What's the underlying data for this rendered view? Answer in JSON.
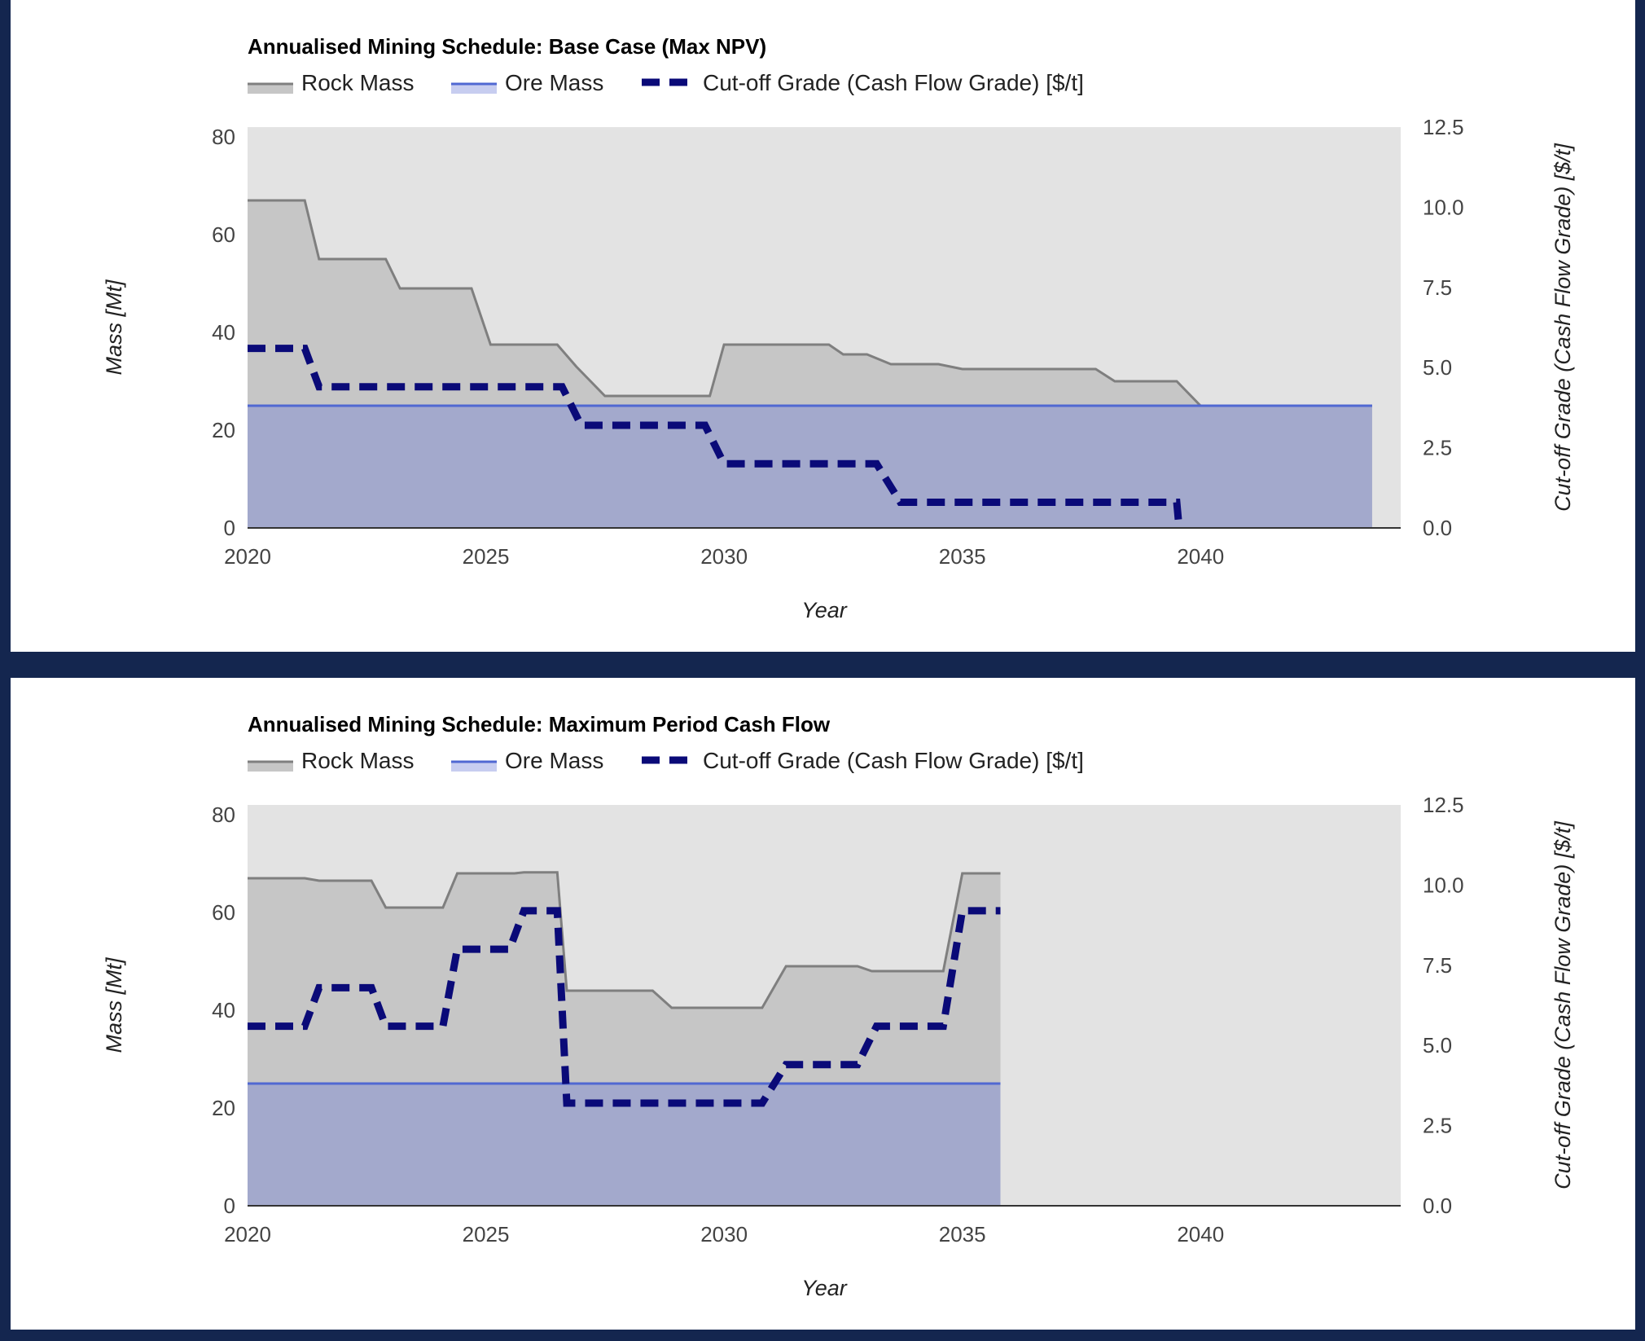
{
  "colors": {
    "background": "#14264f",
    "plot_bg": "#e3e3e3",
    "rock_line": "#7f7f7f",
    "rock_fill": "#c6c6c6",
    "ore_line": "#5068d2",
    "ore_fill": "#a3a9cc",
    "cutoff": "#0a0a78"
  },
  "chart_data": [
    {
      "type": "area",
      "title": "Annualised Mining Schedule: Base Case (Max NPV)",
      "xlabel": "Year",
      "ylabel": "Mass [Mt]",
      "y2label": "Cut-off Grade (Cash Flow Grade) [$/t]",
      "xlim": [
        2020,
        2044.2
      ],
      "ylim": [
        0,
        82
      ],
      "y2lim": [
        0,
        12.5
      ],
      "xticks": [
        "2020",
        "2025",
        "2030",
        "2035",
        "2040"
      ],
      "yticks": [
        "0",
        "20",
        "40",
        "60",
        "80"
      ],
      "y2ticks": [
        "0.0",
        "2.5",
        "5.0",
        "7.5",
        "10.0",
        "12.5"
      ],
      "legend_position": "top-left",
      "grid": false,
      "series": [
        {
          "name": "Rock Mass",
          "axis": "left",
          "style": "area",
          "x": [
            2020,
            2021.2,
            2021.5,
            2022.9,
            2023.2,
            2024.7,
            2025.1,
            2026.5,
            2026.9,
            2027.5,
            2029.7,
            2030.0,
            2032.2,
            2032.5,
            2033.0,
            2033.5,
            2034.5,
            2035.0,
            2037.8,
            2038.2,
            2039.5,
            2040.0,
            2043.6
          ],
          "values": [
            67,
            67,
            55,
            55,
            49,
            49,
            37.5,
            37.5,
            33,
            27,
            27,
            37.5,
            37.5,
            35.5,
            35.5,
            33.5,
            33.5,
            32.5,
            32.5,
            30,
            30,
            25,
            25
          ]
        },
        {
          "name": "Ore Mass",
          "axis": "left",
          "style": "area",
          "x": [
            2020,
            2043.6
          ],
          "values": [
            25,
            25
          ]
        },
        {
          "name": "Cut-off Grade (Cash Flow Grade) [$/t]",
          "axis": "right",
          "style": "dashed",
          "x": [
            2020,
            2021.2,
            2021.5,
            2026.6,
            2027.0,
            2029.6,
            2030.0,
            2033.2,
            2033.7,
            2039.5,
            2039.55
          ],
          "values": [
            5.6,
            5.6,
            4.4,
            4.4,
            3.2,
            3.2,
            2.0,
            2.0,
            0.8,
            0.8,
            0.0
          ]
        }
      ]
    },
    {
      "type": "area",
      "title": "Annualised Mining Schedule: Maximum Period Cash Flow",
      "xlabel": "Year",
      "ylabel": "Mass [Mt]",
      "y2label": "Cut-off Grade (Cash Flow Grade) [$/t]",
      "xlim": [
        2020,
        2044.2
      ],
      "ylim": [
        0,
        82
      ],
      "y2lim": [
        0,
        12.5
      ],
      "xticks": [
        "2020",
        "2025",
        "2030",
        "2035",
        "2040"
      ],
      "yticks": [
        "0",
        "20",
        "40",
        "60",
        "80"
      ],
      "y2ticks": [
        "0.0",
        "2.5",
        "5.0",
        "7.5",
        "10.0",
        "12.5"
      ],
      "legend_position": "top-left",
      "grid": false,
      "series": [
        {
          "name": "Rock Mass",
          "axis": "left",
          "style": "area",
          "x": [
            2020,
            2021.2,
            2021.5,
            2022.6,
            2022.9,
            2024.1,
            2024.4,
            2025.6,
            2025.8,
            2026.5,
            2026.7,
            2028.5,
            2028.9,
            2030.8,
            2031.3,
            2032.8,
            2033.1,
            2034.6,
            2035.0,
            2035.8
          ],
          "values": [
            67,
            67,
            66.5,
            66.5,
            61,
            61,
            68,
            68,
            68.2,
            68.2,
            44,
            44,
            40.5,
            40.5,
            49,
            49,
            48,
            48,
            68,
            68
          ]
        },
        {
          "name": "Ore Mass",
          "axis": "left",
          "style": "area",
          "x": [
            2020,
            2035.8
          ],
          "values": [
            25,
            25
          ]
        },
        {
          "name": "Cut-off Grade (Cash Flow Grade) [$/t]",
          "axis": "right",
          "style": "dashed",
          "x": [
            2020,
            2021.2,
            2021.5,
            2022.6,
            2022.9,
            2024.1,
            2024.4,
            2025.5,
            2025.8,
            2026.5,
            2026.7,
            2030.8,
            2031.3,
            2032.8,
            2033.2,
            2034.6,
            2035.0,
            2035.8
          ],
          "values": [
            5.6,
            5.6,
            6.8,
            6.8,
            5.6,
            5.6,
            8.0,
            8.0,
            9.2,
            9.2,
            3.2,
            3.2,
            4.4,
            4.4,
            5.6,
            5.6,
            9.2,
            9.2
          ]
        }
      ]
    }
  ]
}
